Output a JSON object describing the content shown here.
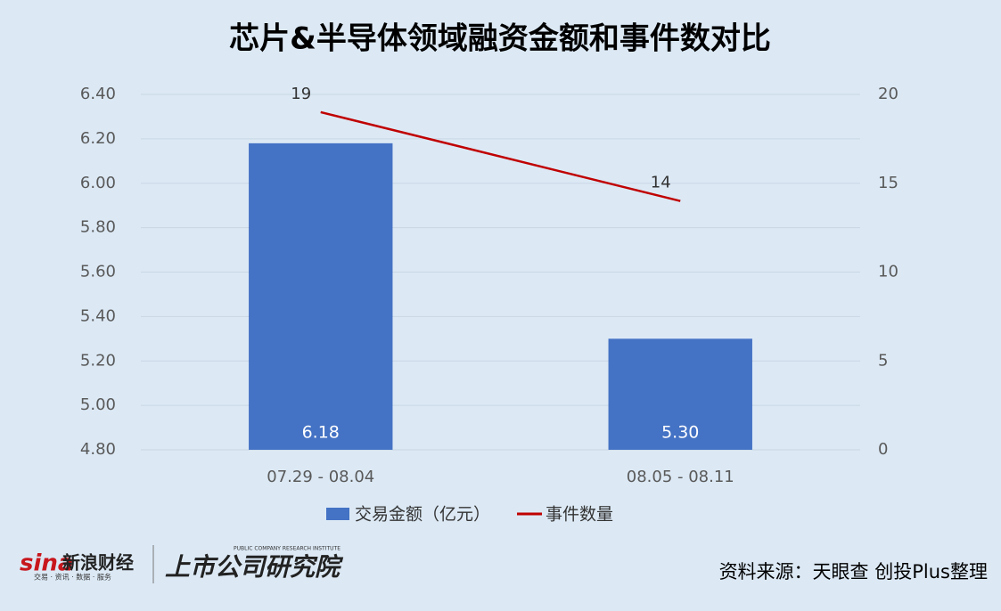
{
  "chart_data": {
    "type": "bar_line",
    "title": "芯片&半导体领域融资金额和事件数对比",
    "categories": [
      "07.29 - 08.04",
      "08.05 - 08.11"
    ],
    "series": [
      {
        "name": "交易金额（亿元）",
        "type": "bar",
        "color": "#4472c4",
        "values": [
          6.18,
          5.3
        ],
        "value_labels": [
          "6.18",
          "5.30"
        ]
      },
      {
        "name": "事件数量",
        "type": "line",
        "color": "#c00000",
        "axis": "y2",
        "values": [
          19,
          14
        ]
      }
    ],
    "ylim": [
      4.8,
      6.4
    ],
    "yticks": [
      {
        "value": 4.8,
        "label": "4.80"
      },
      {
        "value": 5.0,
        "label": "5.00"
      },
      {
        "value": 5.2,
        "label": "5.20"
      },
      {
        "value": 5.4,
        "label": "5.40"
      },
      {
        "value": 5.6,
        "label": "5.60"
      },
      {
        "value": 5.8,
        "label": "5.80"
      },
      {
        "value": 6.0,
        "label": "6.00"
      },
      {
        "value": 6.2,
        "label": "6.20"
      },
      {
        "value": 6.4,
        "label": "6.40"
      }
    ],
    "y2lim": [
      0,
      20
    ],
    "y2ticks": [
      0,
      5,
      10,
      15,
      20
    ],
    "grid": true,
    "legend": "bottom"
  },
  "footer": {
    "sina": "sina",
    "brand": "新浪财经",
    "slogan": "交易 · 资讯 · 数据 · 服务",
    "institute": "上市公司研究院",
    "institute_en": "PUBLIC COMPANY RESEARCH INSTITUTE",
    "source": "资料来源：天眼查 创投Plus整理"
  }
}
